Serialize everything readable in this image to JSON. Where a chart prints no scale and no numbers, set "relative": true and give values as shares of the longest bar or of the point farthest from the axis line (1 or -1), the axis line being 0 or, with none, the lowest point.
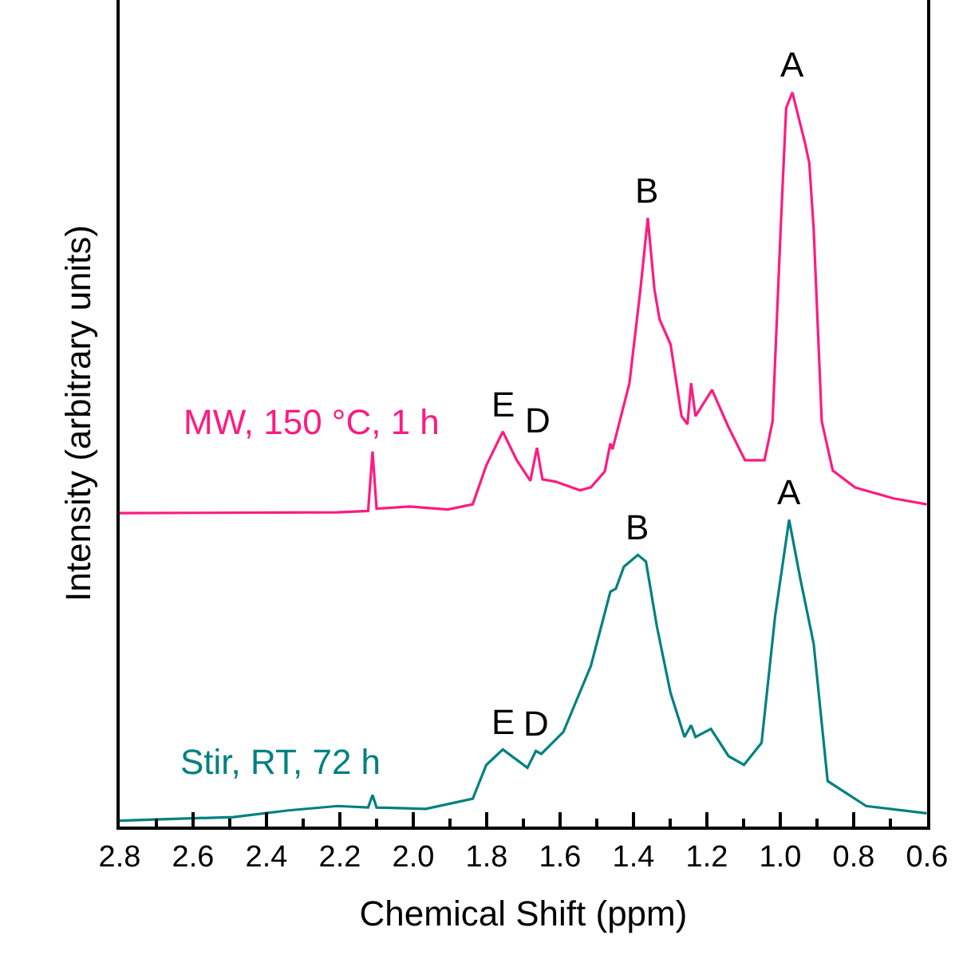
{
  "chart_data": {
    "type": "line",
    "relative": true,
    "xlabel": "Chemical Shift (ppm)",
    "ylabel": "Intensity (arbitrary units)",
    "xlim": [
      2.8,
      0.6
    ],
    "xticks": [
      2.8,
      {
        "value": 2.7,
        "label": null
      },
      2.6,
      {
        "value": 2.5,
        "label": null
      },
      2.4,
      {
        "value": 2.3,
        "label": null
      },
      2.2,
      {
        "value": 2.1,
        "label": null
      },
      {
        "value": 2.0,
        "label": "2.0"
      },
      {
        "value": 1.9,
        "label": null
      },
      1.8,
      {
        "value": 1.7,
        "label": null
      },
      1.6,
      {
        "value": 1.5,
        "label": null
      },
      1.4,
      {
        "value": 1.3,
        "label": null
      },
      1.2,
      {
        "value": 1.1,
        "label": null
      },
      {
        "value": 1.0,
        "label": "1.0"
      },
      {
        "value": 0.9,
        "label": null
      },
      0.8,
      {
        "value": 0.7,
        "label": null
      },
      0.6
    ],
    "tick_labels": "x",
    "legend": false,
    "marker": "none",
    "line_style": "solid",
    "series": [
      {
        "name": "MW, 150 °C, 1 h",
        "color": "#ff1a80",
        "x": [
          2.8,
          2.206,
          2.123,
          2.111,
          2.1,
          2.01,
          1.906,
          1.838,
          1.801,
          1.756,
          1.718,
          1.681,
          1.663,
          1.648,
          1.613,
          1.546,
          1.516,
          1.478,
          1.463,
          1.457,
          1.411,
          1.381,
          1.361,
          1.343,
          1.329,
          1.299,
          1.269,
          1.253,
          1.243,
          1.231,
          1.186,
          1.141,
          1.096,
          1.043,
          1.021,
          0.999,
          0.984,
          0.967,
          0.949,
          0.932,
          0.921,
          0.909,
          0.887,
          0.857,
          0.796,
          0.691,
          0.601
        ],
        "values": [
          0.427,
          0.428,
          0.43,
          0.511,
          0.433,
          0.436,
          0.432,
          0.439,
          0.492,
          0.538,
          0.499,
          0.471,
          0.516,
          0.473,
          0.47,
          0.458,
          0.462,
          0.484,
          0.522,
          0.514,
          0.604,
          0.732,
          0.829,
          0.732,
          0.691,
          0.657,
          0.559,
          0.548,
          0.604,
          0.559,
          0.595,
          0.544,
          0.499,
          0.499,
          0.552,
          0.814,
          0.979,
          1.0,
          0.964,
          0.93,
          0.904,
          0.814,
          0.552,
          0.485,
          0.462,
          0.447,
          0.439
        ]
      },
      {
        "name": "Stir, RT, 72 h",
        "color": "#008080",
        "x": [
          2.8,
          2.49,
          2.34,
          2.206,
          2.123,
          2.111,
          2.1,
          1.966,
          1.838,
          1.801,
          1.756,
          1.689,
          1.666,
          1.651,
          1.591,
          1.516,
          1.463,
          1.448,
          1.426,
          1.388,
          1.366,
          1.336,
          1.299,
          1.261,
          1.243,
          1.231,
          1.189,
          1.141,
          1.099,
          1.051,
          1.014,
          0.976,
          0.946,
          0.909,
          0.871,
          0.766,
          0.601
        ],
        "values": [
          0.008,
          0.013,
          0.022,
          0.028,
          0.026,
          0.043,
          0.026,
          0.024,
          0.038,
          0.084,
          0.105,
          0.08,
          0.103,
          0.099,
          0.129,
          0.219,
          0.32,
          0.324,
          0.354,
          0.37,
          0.361,
          0.272,
          0.182,
          0.122,
          0.138,
          0.122,
          0.133,
          0.096,
          0.084,
          0.114,
          0.287,
          0.418,
          0.339,
          0.249,
          0.062,
          0.028,
          0.018
        ]
      }
    ],
    "annotations": [
      {
        "text": "A",
        "x": 0.967,
        "y": 1.0
      },
      {
        "text": "B",
        "x": 1.361,
        "y": 0.829
      },
      {
        "text": "E",
        "x": 1.756,
        "y": 0.538
      },
      {
        "text": "D",
        "x": 1.663,
        "y": 0.516
      },
      {
        "text": "A",
        "x": 0.976,
        "y": 0.418
      },
      {
        "text": "B",
        "x": 1.388,
        "y": 0.37
      },
      {
        "text": "E",
        "x": 1.756,
        "y": 0.105
      },
      {
        "text": "D",
        "x": 1.666,
        "y": 0.103
      }
    ]
  }
}
